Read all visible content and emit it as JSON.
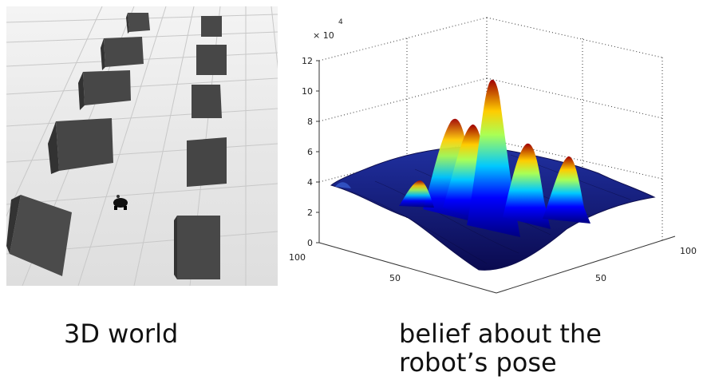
{
  "captions": {
    "left": "3D world",
    "right": "belief about the robot’s pose"
  },
  "world": {
    "floor_color": "#e6e6e6",
    "box_color": "#444444",
    "robot_color": "#111111"
  },
  "plot": {
    "exponent_label": "× 10",
    "exponent_power": "4",
    "z_ticks": [
      "0",
      "2",
      "4",
      "6",
      "8",
      "10",
      "12"
    ],
    "x_ticks": [
      "100",
      "50"
    ],
    "y_ticks": [
      "50",
      "100"
    ],
    "colormap": [
      "#000080",
      "#0000ff",
      "#00ffff",
      "#ffff00",
      "#ff0000",
      "#800000"
    ]
  }
}
